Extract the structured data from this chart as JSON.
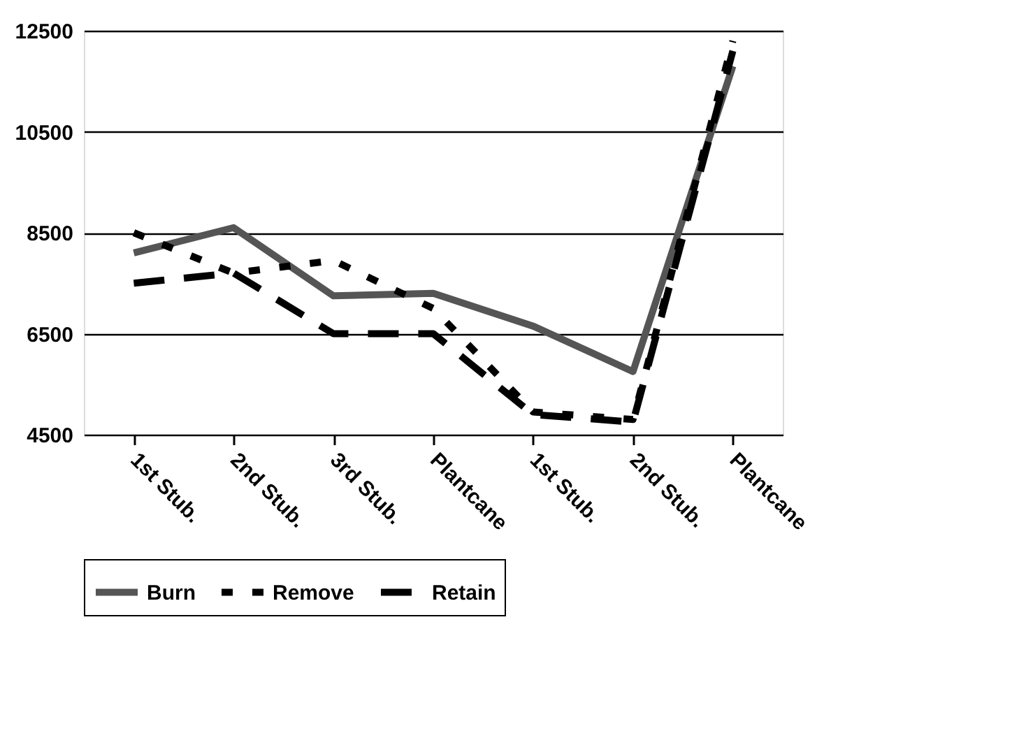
{
  "chart_data": {
    "type": "line",
    "categories": [
      "1st Stub.",
      "2nd Stub.",
      "3rd Stub.",
      "Plantcane",
      "1st Stub.",
      "2nd Stub.",
      "Plantcane"
    ],
    "series": [
      {
        "name": "Burn",
        "color": "#555555",
        "line_style": "solid",
        "values": [
          8100,
          8600,
          7250,
          7300,
          6650,
          5750,
          11800
        ]
      },
      {
        "name": "Remove",
        "color": "#000000",
        "line_style": "dotted",
        "values": [
          8500,
          7700,
          7950,
          7000,
          4950,
          4800,
          12300
        ]
      },
      {
        "name": "Retain",
        "color": "#000000",
        "line_style": "dashed",
        "values": [
          7500,
          7700,
          6500,
          6500,
          4900,
          4750,
          12100
        ]
      }
    ],
    "ylim": [
      4500,
      12500
    ],
    "yticks": [
      4500,
      6500,
      8500,
      10500,
      12500
    ],
    "grid": "y",
    "legend": "bottom",
    "marker": "none"
  }
}
